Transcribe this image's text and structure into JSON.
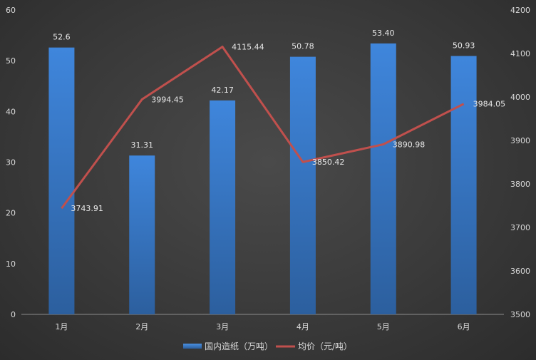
{
  "chart_data": {
    "type": "bar",
    "categories": [
      "1月",
      "2月",
      "3月",
      "4月",
      "5月",
      "6月"
    ],
    "series": [
      {
        "name": "国内造纸（万吨）",
        "type": "bar",
        "axis": "left",
        "values": [
          52.6,
          31.31,
          42.17,
          50.78,
          53.4,
          50.93
        ],
        "labels": [
          "52.6",
          "31.31",
          "42.17",
          "50.78",
          "53.40",
          "50.93"
        ],
        "color": "#3a78c9"
      },
      {
        "name": "均价（元/吨）",
        "type": "line",
        "axis": "right",
        "values": [
          3743.91,
          3994.45,
          4115.44,
          3850.42,
          3890.98,
          3984.05
        ],
        "labels": [
          "3743.91",
          "3994.45",
          "4115.44",
          "3850.42",
          "3890.98",
          "3984.05"
        ],
        "color": "#c0504d"
      }
    ],
    "y_left": {
      "ylim": [
        0,
        60
      ],
      "ticks": [
        "0",
        "10",
        "20",
        "30",
        "40",
        "50",
        "60"
      ]
    },
    "y_right": {
      "ylim": [
        3500,
        4200
      ],
      "ticks": [
        "3500",
        "3600",
        "3700",
        "3800",
        "3900",
        "4000",
        "4100",
        "4200"
      ]
    },
    "grid": false,
    "legend": "bottom"
  }
}
